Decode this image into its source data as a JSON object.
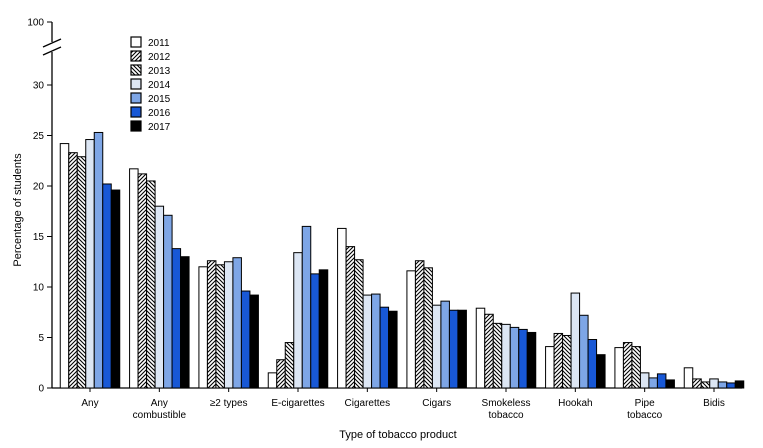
{
  "chart_data": {
    "type": "bar",
    "title": "",
    "xlabel": "Type of tobacco product",
    "ylabel": "Percentage of students",
    "ylim": [
      0,
      30
    ],
    "y_break_top_label": "100",
    "yticks": [
      "0",
      "5",
      "10",
      "15",
      "20",
      "25",
      "30"
    ],
    "grid": false,
    "legend_position": "top-left",
    "categories": [
      [
        "Any"
      ],
      [
        "Any",
        "combustible"
      ],
      [
        "≥2 types"
      ],
      [
        "E-cigarettes"
      ],
      [
        "Cigarettes"
      ],
      [
        "Cigars"
      ],
      [
        "Smokeless",
        "tobacco"
      ],
      [
        "Hookah"
      ],
      [
        "Pipe",
        "tobacco"
      ],
      [
        "Bidis"
      ]
    ],
    "series": [
      {
        "name": "2011",
        "pattern": "white",
        "values": [
          24.2,
          21.7,
          12.0,
          1.5,
          15.8,
          11.6,
          7.9,
          4.1,
          4.0,
          2.0
        ]
      },
      {
        "name": "2012",
        "pattern": "hatch-fwd",
        "values": [
          23.3,
          21.2,
          12.6,
          2.8,
          14.0,
          12.6,
          7.3,
          5.4,
          4.5,
          0.9
        ]
      },
      {
        "name": "2013",
        "pattern": "hatch-back",
        "values": [
          22.9,
          20.5,
          12.2,
          4.5,
          12.7,
          11.9,
          6.4,
          5.2,
          4.1,
          0.6
        ]
      },
      {
        "name": "2014",
        "pattern": "light-gray-blue",
        "values": [
          24.6,
          18.0,
          12.5,
          13.4,
          9.2,
          8.2,
          6.3,
          9.4,
          1.5,
          0.9
        ]
      },
      {
        "name": "2015",
        "pattern": "light-blue",
        "values": [
          25.3,
          17.1,
          12.9,
          16.0,
          9.3,
          8.6,
          6.0,
          7.2,
          1.0,
          0.6
        ]
      },
      {
        "name": "2016",
        "pattern": "blue",
        "values": [
          20.2,
          13.8,
          9.6,
          11.3,
          8.0,
          7.7,
          5.8,
          4.8,
          1.4,
          0.5
        ]
      },
      {
        "name": "2017",
        "pattern": "black",
        "values": [
          19.6,
          13.0,
          9.2,
          11.7,
          7.6,
          7.7,
          5.5,
          3.3,
          0.8,
          0.7
        ]
      }
    ],
    "colors": {
      "white": "#ffffff",
      "hatch": "#ffffff",
      "light-gray-blue": "#dce6f4",
      "light-blue": "#7ea6e6",
      "blue": "#1858d6",
      "black": "#000000",
      "stroke": "#000000"
    }
  }
}
